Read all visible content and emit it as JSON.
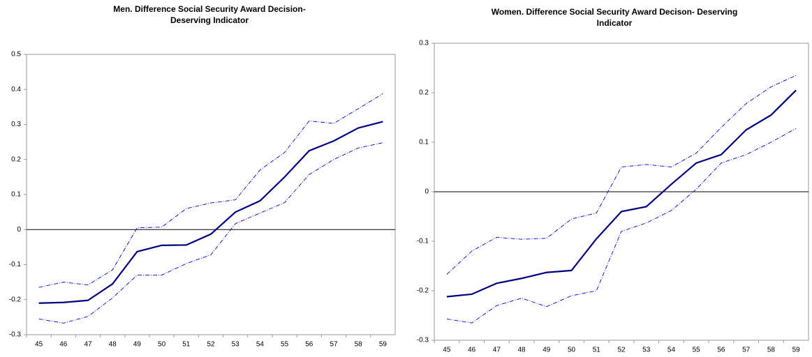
{
  "chart_data": [
    {
      "type": "line",
      "title": [
        "Men. Difference Social Security Award Decision-",
        "Deserving Indicator"
      ],
      "categories": [
        "45",
        "46",
        "47",
        "48",
        "49",
        "50",
        "51",
        "52",
        "53",
        "54",
        "55",
        "56",
        "57",
        "58",
        "59"
      ],
      "series": [
        {
          "color": "#000080",
          "line_style": "solid",
          "values": [
            -0.21,
            -0.208,
            -0.202,
            -0.155,
            -0.063,
            -0.045,
            -0.044,
            -0.013,
            0.05,
            0.082,
            0.15,
            0.225,
            0.253,
            0.29,
            0.308
          ]
        },
        {
          "color": "#0000cc",
          "line_style": "dash-dot",
          "values": [
            -0.165,
            -0.15,
            -0.158,
            -0.115,
            0.005,
            0.007,
            0.06,
            0.076,
            0.085,
            0.17,
            0.22,
            0.31,
            0.303,
            0.345,
            0.388
          ]
        },
        {
          "color": "#0000cc",
          "line_style": "dash-dot",
          "values": [
            -0.255,
            -0.267,
            -0.248,
            -0.195,
            -0.13,
            -0.13,
            -0.097,
            -0.072,
            0.017,
            0.047,
            0.077,
            0.157,
            0.2,
            0.233,
            0.248
          ]
        }
      ],
      "reference_line": 0,
      "ylim": [
        -0.3,
        0.5
      ],
      "yticks": [
        -0.3,
        -0.2,
        -0.1,
        0,
        0.1,
        0.2,
        0.3,
        0.4,
        0.5
      ]
    },
    {
      "type": "line",
      "title": [
        "Women. Difference Social Security Award Decison- Deserving",
        "Indicator"
      ],
      "categories": [
        "45",
        "46",
        "47",
        "48",
        "49",
        "50",
        "51",
        "52",
        "53",
        "54",
        "55",
        "56",
        "57",
        "58",
        "59"
      ],
      "series": [
        {
          "color": "#000080",
          "line_style": "solid",
          "values": [
            -0.212,
            -0.207,
            -0.185,
            -0.175,
            -0.163,
            -0.159,
            -0.095,
            -0.04,
            -0.03,
            0.015,
            0.058,
            0.075,
            0.125,
            0.155,
            0.205
          ]
        },
        {
          "color": "#0000cc",
          "line_style": "dash-dot",
          "values": [
            -0.167,
            -0.12,
            -0.092,
            -0.096,
            -0.094,
            -0.055,
            -0.043,
            0.05,
            0.055,
            0.05,
            0.078,
            0.13,
            0.178,
            0.212,
            0.235
          ]
        },
        {
          "color": "#0000cc",
          "line_style": "dash-dot",
          "values": [
            -0.257,
            -0.265,
            -0.23,
            -0.215,
            -0.232,
            -0.21,
            -0.2,
            -0.08,
            -0.063,
            -0.038,
            0.005,
            0.058,
            0.075,
            0.1,
            0.128
          ]
        }
      ],
      "reference_line": 0,
      "ylim": [
        -0.3,
        0.3
      ],
      "yticks": [
        -0.3,
        -0.2,
        -0.1,
        0,
        0.1,
        0.2,
        0.3
      ]
    }
  ]
}
